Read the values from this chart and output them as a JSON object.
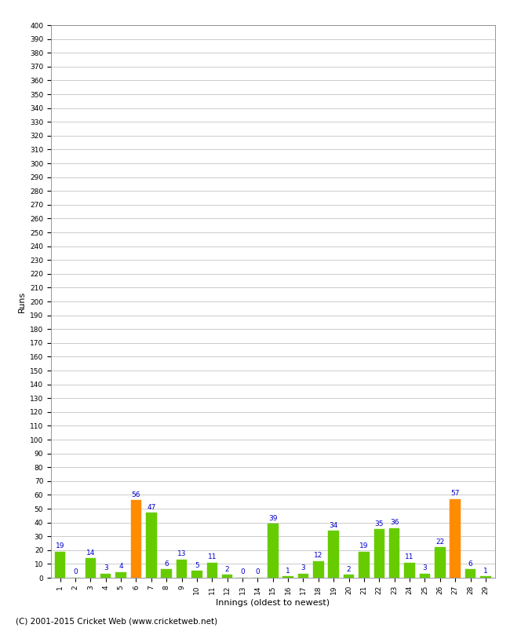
{
  "innings": [
    1,
    2,
    3,
    4,
    5,
    6,
    7,
    8,
    9,
    10,
    11,
    12,
    13,
    14,
    15,
    16,
    17,
    18,
    19,
    20,
    21,
    22,
    23,
    24,
    25,
    26,
    27,
    28,
    29
  ],
  "runs": [
    19,
    0,
    14,
    3,
    4,
    56,
    47,
    6,
    13,
    5,
    11,
    2,
    0,
    0,
    39,
    1,
    3,
    12,
    34,
    2,
    19,
    35,
    36,
    11,
    3,
    22,
    57,
    6,
    1
  ],
  "colors": [
    "#66cc00",
    "#66cc00",
    "#66cc00",
    "#66cc00",
    "#66cc00",
    "#ff8c00",
    "#66cc00",
    "#66cc00",
    "#66cc00",
    "#66cc00",
    "#66cc00",
    "#66cc00",
    "#66cc00",
    "#66cc00",
    "#66cc00",
    "#66cc00",
    "#66cc00",
    "#66cc00",
    "#66cc00",
    "#66cc00",
    "#66cc00",
    "#66cc00",
    "#66cc00",
    "#66cc00",
    "#66cc00",
    "#66cc00",
    "#ff8c00",
    "#66cc00",
    "#66cc00"
  ],
  "xlabel": "Innings (oldest to newest)",
  "ylabel": "Runs",
  "ylim": [
    0,
    400
  ],
  "ytick_step": 10,
  "label_color": "#0000cc",
  "label_fontsize": 6.5,
  "xlabel_fontsize": 8,
  "ylabel_fontsize": 8,
  "tick_fontsize": 6.5,
  "footer": "(C) 2001-2015 Cricket Web (www.cricketweb.net)",
  "footer_fontsize": 7.5,
  "bar_width": 0.7,
  "grid_color": "#cccccc",
  "background_color": "#ffffff",
  "border_color": "#888888"
}
